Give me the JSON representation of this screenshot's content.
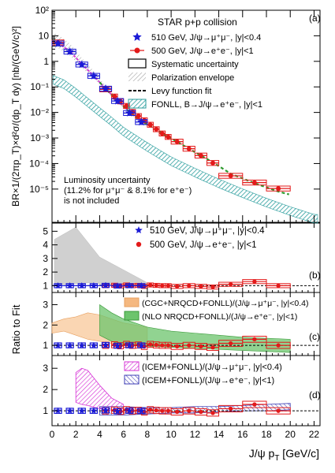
{
  "figure": {
    "x_axis_label": "J/ψ p",
    "x_axis_label_sub": "T",
    "x_axis_label_unit": " [GeV/c]",
    "ratio_axis_label": "Ratio to Fit",
    "x_ticks": [
      "0",
      "2",
      "4",
      "6",
      "8",
      "10",
      "12",
      "14",
      "16",
      "18",
      "20",
      "22"
    ]
  },
  "chart_data": [
    {
      "panel": "a",
      "panel_label": "(a)",
      "type": "scatter",
      "y_scale": "log",
      "ylim": [
        5e-07,
        100
      ],
      "xlim": [
        0,
        22.5
      ],
      "ylabel": "BR×1/(2πp_T)×d²σ/(dp_T dy) [nb/(GeV/c)²]",
      "y_tick_labels": [
        "10⁻⁵",
        "10⁻⁴",
        "10⁻³",
        "10⁻²",
        "10⁻¹",
        "1",
        "10",
        "10²"
      ],
      "y_tick_values": [
        1e-05,
        0.0001,
        0.001,
        0.01,
        0.1,
        1,
        10,
        100
      ],
      "legend_title": "STAR p+p collision",
      "legend": [
        {
          "marker": "star",
          "color": "#1a1ad6",
          "label": "510 GeV, J/ψ→μ⁺μ⁻, |y|<0.4"
        },
        {
          "marker": "circle",
          "color": "#e31a1a",
          "label": "500 GeV, J/ψ→e⁺e⁻, |y|<1"
        },
        {
          "marker": "box",
          "color": "#000000",
          "label": "Systematic uncertainty"
        },
        {
          "marker": "hatch",
          "color": "#888888",
          "label": "Polarization envelope"
        },
        {
          "marker": "dash",
          "color": "#000000",
          "label": "Levy function fit"
        },
        {
          "marker": "band",
          "color": "#2a9d9d",
          "label": "FONLL, B→J/ψ→e⁺e⁻, |y|<1"
        }
      ],
      "note": [
        "Luminosity uncertainty",
        "(11.2% for μ⁺μ⁻ & 8.1% for e⁺e⁻)",
        "is not included"
      ],
      "series": [
        {
          "name": "510 GeV, J/ψ→μ⁺μ⁻, |y|<0.4",
          "color": "#1a1ad6",
          "marker": "star",
          "x": [
            0.5,
            1.5,
            2.5,
            3.5,
            4.5,
            5.5,
            6.5,
            7.5
          ],
          "y": [
            5.0,
            2.4,
            0.75,
            0.27,
            0.085,
            0.028,
            0.0095,
            0.0042
          ],
          "xerr": [
            0.5,
            0.5,
            0.5,
            0.5,
            0.5,
            0.5,
            0.5,
            0.5
          ]
        },
        {
          "name": "500 GeV, J/ψ→e⁺e⁻, |y|<1",
          "color": "#e31a1a",
          "marker": "circle",
          "x": [
            0.5,
            4.5,
            5.25,
            5.75,
            6.25,
            6.75,
            7.25,
            7.75,
            8.25,
            8.75,
            9.25,
            9.75,
            10.5,
            11.5,
            12.5,
            13.5,
            15.0,
            17.0,
            19.0
          ],
          "y": [
            5.5,
            0.08,
            0.042,
            0.027,
            0.018,
            0.0105,
            0.0072,
            0.0049,
            0.0033,
            0.0022,
            0.0015,
            0.0011,
            0.00072,
            0.00038,
            0.000205,
            0.000105,
            3.3e-05,
            1.8e-05,
            1.05e-05
          ],
          "xerr": [
            0.5,
            0.5,
            0.25,
            0.25,
            0.25,
            0.25,
            0.25,
            0.25,
            0.25,
            0.25,
            0.25,
            0.25,
            0.5,
            0.5,
            0.5,
            0.5,
            1,
            1,
            1
          ]
        }
      ]
    },
    {
      "panel": "b",
      "panel_label": "(b)",
      "type": "scatter",
      "ylim": [
        0.5,
        5.6
      ],
      "y_tick_labels": [
        "1",
        "2",
        "3",
        "4",
        "5"
      ],
      "legend": [
        {
          "marker": "star",
          "color": "#1a1ad6",
          "label": "510 GeV, J/ψ→μ⁺μ⁻, |y|<0.4"
        },
        {
          "marker": "circle",
          "color": "#e31a1a",
          "label": "500 GeV, J/ψ→e⁺e⁻, |y|<1"
        }
      ],
      "series": [
        {
          "name": "510 GeV, J/ψ→μ⁺μ⁻, |y|<0.4",
          "x": [
            0.5,
            1.5,
            2.5,
            3.5,
            4.5,
            5.5,
            6.5,
            7.5
          ],
          "y": [
            1.0,
            1.0,
            1.0,
            1.0,
            1.02,
            0.98,
            1.0,
            1.0
          ]
        },
        {
          "name": "500 GeV, J/ψ→e⁺e⁻, |y|<1",
          "x": [
            4.5,
            5.25,
            5.75,
            6.25,
            6.75,
            7.25,
            7.75,
            8.25,
            8.75,
            9.25,
            9.75,
            10.5,
            11.5,
            12.5,
            13.5,
            15,
            17,
            19
          ],
          "y": [
            1.0,
            1.03,
            0.98,
            1.05,
            1.0,
            1.02,
            0.95,
            1.05,
            1.02,
            1.0,
            1.0,
            0.95,
            1.0,
            0.95,
            0.9,
            1.1,
            1.3,
            1.0
          ]
        }
      ]
    },
    {
      "panel": "c",
      "panel_label": "(c)",
      "type": "area",
      "ylim": [
        0.5,
        3.6
      ],
      "y_tick_labels": [
        "1",
        "2",
        "3"
      ],
      "legend": [
        {
          "marker": "band",
          "color": "#f5b880",
          "label": "(CGC+NRQCD+FONLL)/(J/ψ→μ⁺μ⁻, |y|<0.4)"
        },
        {
          "marker": "band",
          "color": "#6cc46c",
          "label": "(NLO NRQCD+FONLL)/(J/ψ→e⁺e⁻, |y|<1)"
        }
      ],
      "series": [
        {
          "name": "(CGC+NRQCD+FONLL)/(J/ψ→μ⁺μ⁻, |y|<0.4)",
          "x": [
            0,
            1,
            2,
            3,
            4,
            5,
            6,
            7,
            8
          ],
          "y_low": [
            1.6,
            1.7,
            1.5,
            1.3,
            1.2,
            1.1,
            1.05,
            1.0,
            1.0
          ],
          "y_high": [
            2.1,
            2.3,
            2.4,
            2.6,
            2.5,
            2.3,
            2.1,
            2.0,
            1.9
          ]
        },
        {
          "name": "(NLO NRQCD+FONLL)/(J/ψ→e⁺e⁻, |y|<1)",
          "x": [
            4,
            5,
            6,
            8,
            10,
            12,
            14,
            16,
            18,
            20
          ],
          "y_low": [
            1.5,
            1.2,
            1.0,
            0.95,
            0.9,
            0.85,
            0.8,
            0.75,
            0.7,
            0.65
          ],
          "y_high": [
            3.0,
            2.6,
            2.3,
            1.9,
            1.7,
            1.6,
            1.5,
            1.4,
            1.35,
            1.3
          ]
        }
      ]
    },
    {
      "panel": "d",
      "panel_label": "(d)",
      "type": "area",
      "ylim": [
        0.3,
        3.6
      ],
      "y_tick_labels": [
        "1",
        "2",
        "3"
      ],
      "legend": [
        {
          "marker": "band",
          "color": "#d633d6",
          "label": "(ICEM+FONLL)/(J/ψ→μ⁺μ⁻, |y|<0.4)"
        },
        {
          "marker": "band",
          "color": "#3c3cb4",
          "label": "(ICEM+FONLL)/(J/ψ→e⁺e⁻, |y|<1)"
        }
      ],
      "series": [
        {
          "name": "(ICEM+FONLL)/(J/ψ→μ⁺μ⁻, |y|<0.4)",
          "x": [
            2,
            2.5,
            3,
            4,
            5,
            6
          ],
          "y_low": [
            1.4,
            1.3,
            1.25,
            1.1,
            1.0,
            0.95
          ],
          "y_high": [
            2.8,
            3.0,
            2.9,
            2.2,
            1.6,
            1.3
          ]
        },
        {
          "name": "(ICEM+FONLL)/(J/ψ→e⁺e⁻, |y|<1)",
          "x": [
            4,
            6,
            8,
            10,
            12,
            14,
            16,
            18,
            20
          ],
          "y_low": [
            0.8,
            0.8,
            0.85,
            0.9,
            0.9,
            0.95,
            1.0,
            1.0,
            1.05
          ],
          "y_high": [
            1.2,
            1.2,
            1.15,
            1.15,
            1.2,
            1.2,
            1.25,
            1.3,
            1.35
          ]
        }
      ]
    }
  ]
}
